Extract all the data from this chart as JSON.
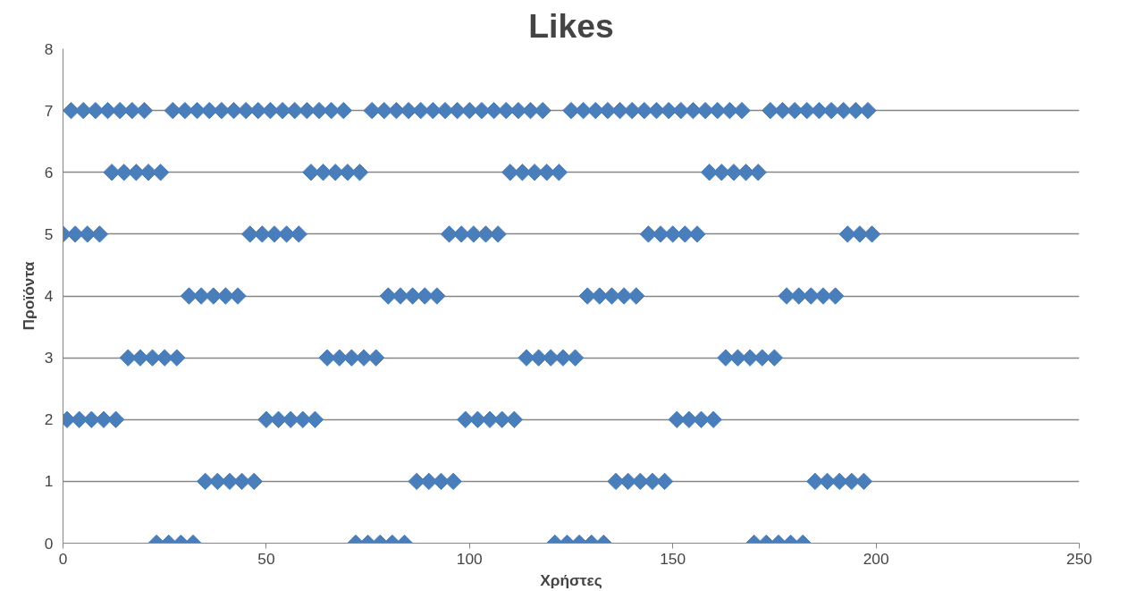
{
  "chart_data": {
    "type": "scatter",
    "title": "Likes",
    "xlabel": "Χρήστες",
    "ylabel": "Προϊόντα",
    "xlim": [
      0,
      250
    ],
    "ylim": [
      0,
      8
    ],
    "xticks": [
      0,
      50,
      100,
      150,
      200,
      250
    ],
    "yticks": [
      0,
      1,
      2,
      3,
      4,
      5,
      6,
      7,
      8
    ],
    "grid": "y",
    "marker": "diamond",
    "series": [
      {
        "color": "#4a7ebb",
        "x": [
          2,
          5,
          8,
          11,
          14,
          17,
          20,
          27,
          30,
          33,
          36,
          39,
          42,
          45,
          48,
          51,
          54,
          57,
          60,
          63,
          66,
          69,
          76,
          79,
          82,
          85,
          88,
          91,
          94,
          97,
          100,
          103,
          106,
          109,
          112,
          115,
          118,
          125,
          128,
          131,
          134,
          137,
          140,
          143,
          146,
          149,
          152,
          155,
          158,
          161,
          164,
          167,
          174,
          177,
          180,
          183,
          186,
          189,
          192,
          195,
          198,
          12,
          15,
          18,
          21,
          24,
          61,
          64,
          67,
          70,
          73,
          110,
          113,
          116,
          119,
          122,
          159,
          162,
          165,
          168,
          171,
          0,
          3,
          6,
          9,
          46,
          49,
          52,
          55,
          58,
          95,
          98,
          101,
          104,
          107,
          144,
          147,
          150,
          153,
          156,
          193,
          196,
          199,
          31,
          34,
          37,
          40,
          43,
          80,
          83,
          86,
          89,
          92,
          129,
          132,
          135,
          138,
          141,
          178,
          181,
          184,
          187,
          190,
          16,
          19,
          22,
          25,
          28,
          65,
          68,
          71,
          74,
          77,
          114,
          117,
          120,
          123,
          126,
          163,
          166,
          169,
          172,
          175,
          1,
          4,
          7,
          10,
          13,
          50,
          53,
          56,
          59,
          62,
          99,
          102,
          105,
          108,
          111,
          151,
          154,
          157,
          160,
          35,
          38,
          41,
          44,
          47,
          87,
          90,
          93,
          96,
          136,
          139,
          142,
          145,
          148,
          185,
          188,
          191,
          194,
          197,
          23,
          26,
          29,
          32,
          72,
          75,
          78,
          81,
          84,
          121,
          124,
          127,
          130,
          133,
          170,
          173,
          176,
          179,
          182
        ],
        "values": [
          7,
          7,
          7,
          7,
          7,
          7,
          7,
          7,
          7,
          7,
          7,
          7,
          7,
          7,
          7,
          7,
          7,
          7,
          7,
          7,
          7,
          7,
          7,
          7,
          7,
          7,
          7,
          7,
          7,
          7,
          7,
          7,
          7,
          7,
          7,
          7,
          7,
          7,
          7,
          7,
          7,
          7,
          7,
          7,
          7,
          7,
          7,
          7,
          7,
          7,
          7,
          7,
          7,
          7,
          7,
          7,
          7,
          7,
          7,
          7,
          7,
          6,
          6,
          6,
          6,
          6,
          6,
          6,
          6,
          6,
          6,
          6,
          6,
          6,
          6,
          6,
          6,
          6,
          6,
          6,
          6,
          5,
          5,
          5,
          5,
          5,
          5,
          5,
          5,
          5,
          5,
          5,
          5,
          5,
          5,
          5,
          5,
          5,
          5,
          5,
          5,
          5,
          5,
          4,
          4,
          4,
          4,
          4,
          4,
          4,
          4,
          4,
          4,
          4,
          4,
          4,
          4,
          4,
          4,
          4,
          4,
          4,
          4,
          3,
          3,
          3,
          3,
          3,
          3,
          3,
          3,
          3,
          3,
          3,
          3,
          3,
          3,
          3,
          3,
          3,
          3,
          3,
          3,
          2,
          2,
          2,
          2,
          2,
          2,
          2,
          2,
          2,
          2,
          2,
          2,
          2,
          2,
          2,
          2,
          2,
          2,
          2,
          1,
          1,
          1,
          1,
          1,
          1,
          1,
          1,
          1,
          1,
          1,
          1,
          1,
          1,
          1,
          1,
          1,
          1,
          1,
          0,
          0,
          0,
          0,
          0,
          0,
          0,
          0,
          0,
          0,
          0,
          0,
          0,
          0,
          0,
          0,
          0,
          0,
          0
        ]
      }
    ]
  }
}
